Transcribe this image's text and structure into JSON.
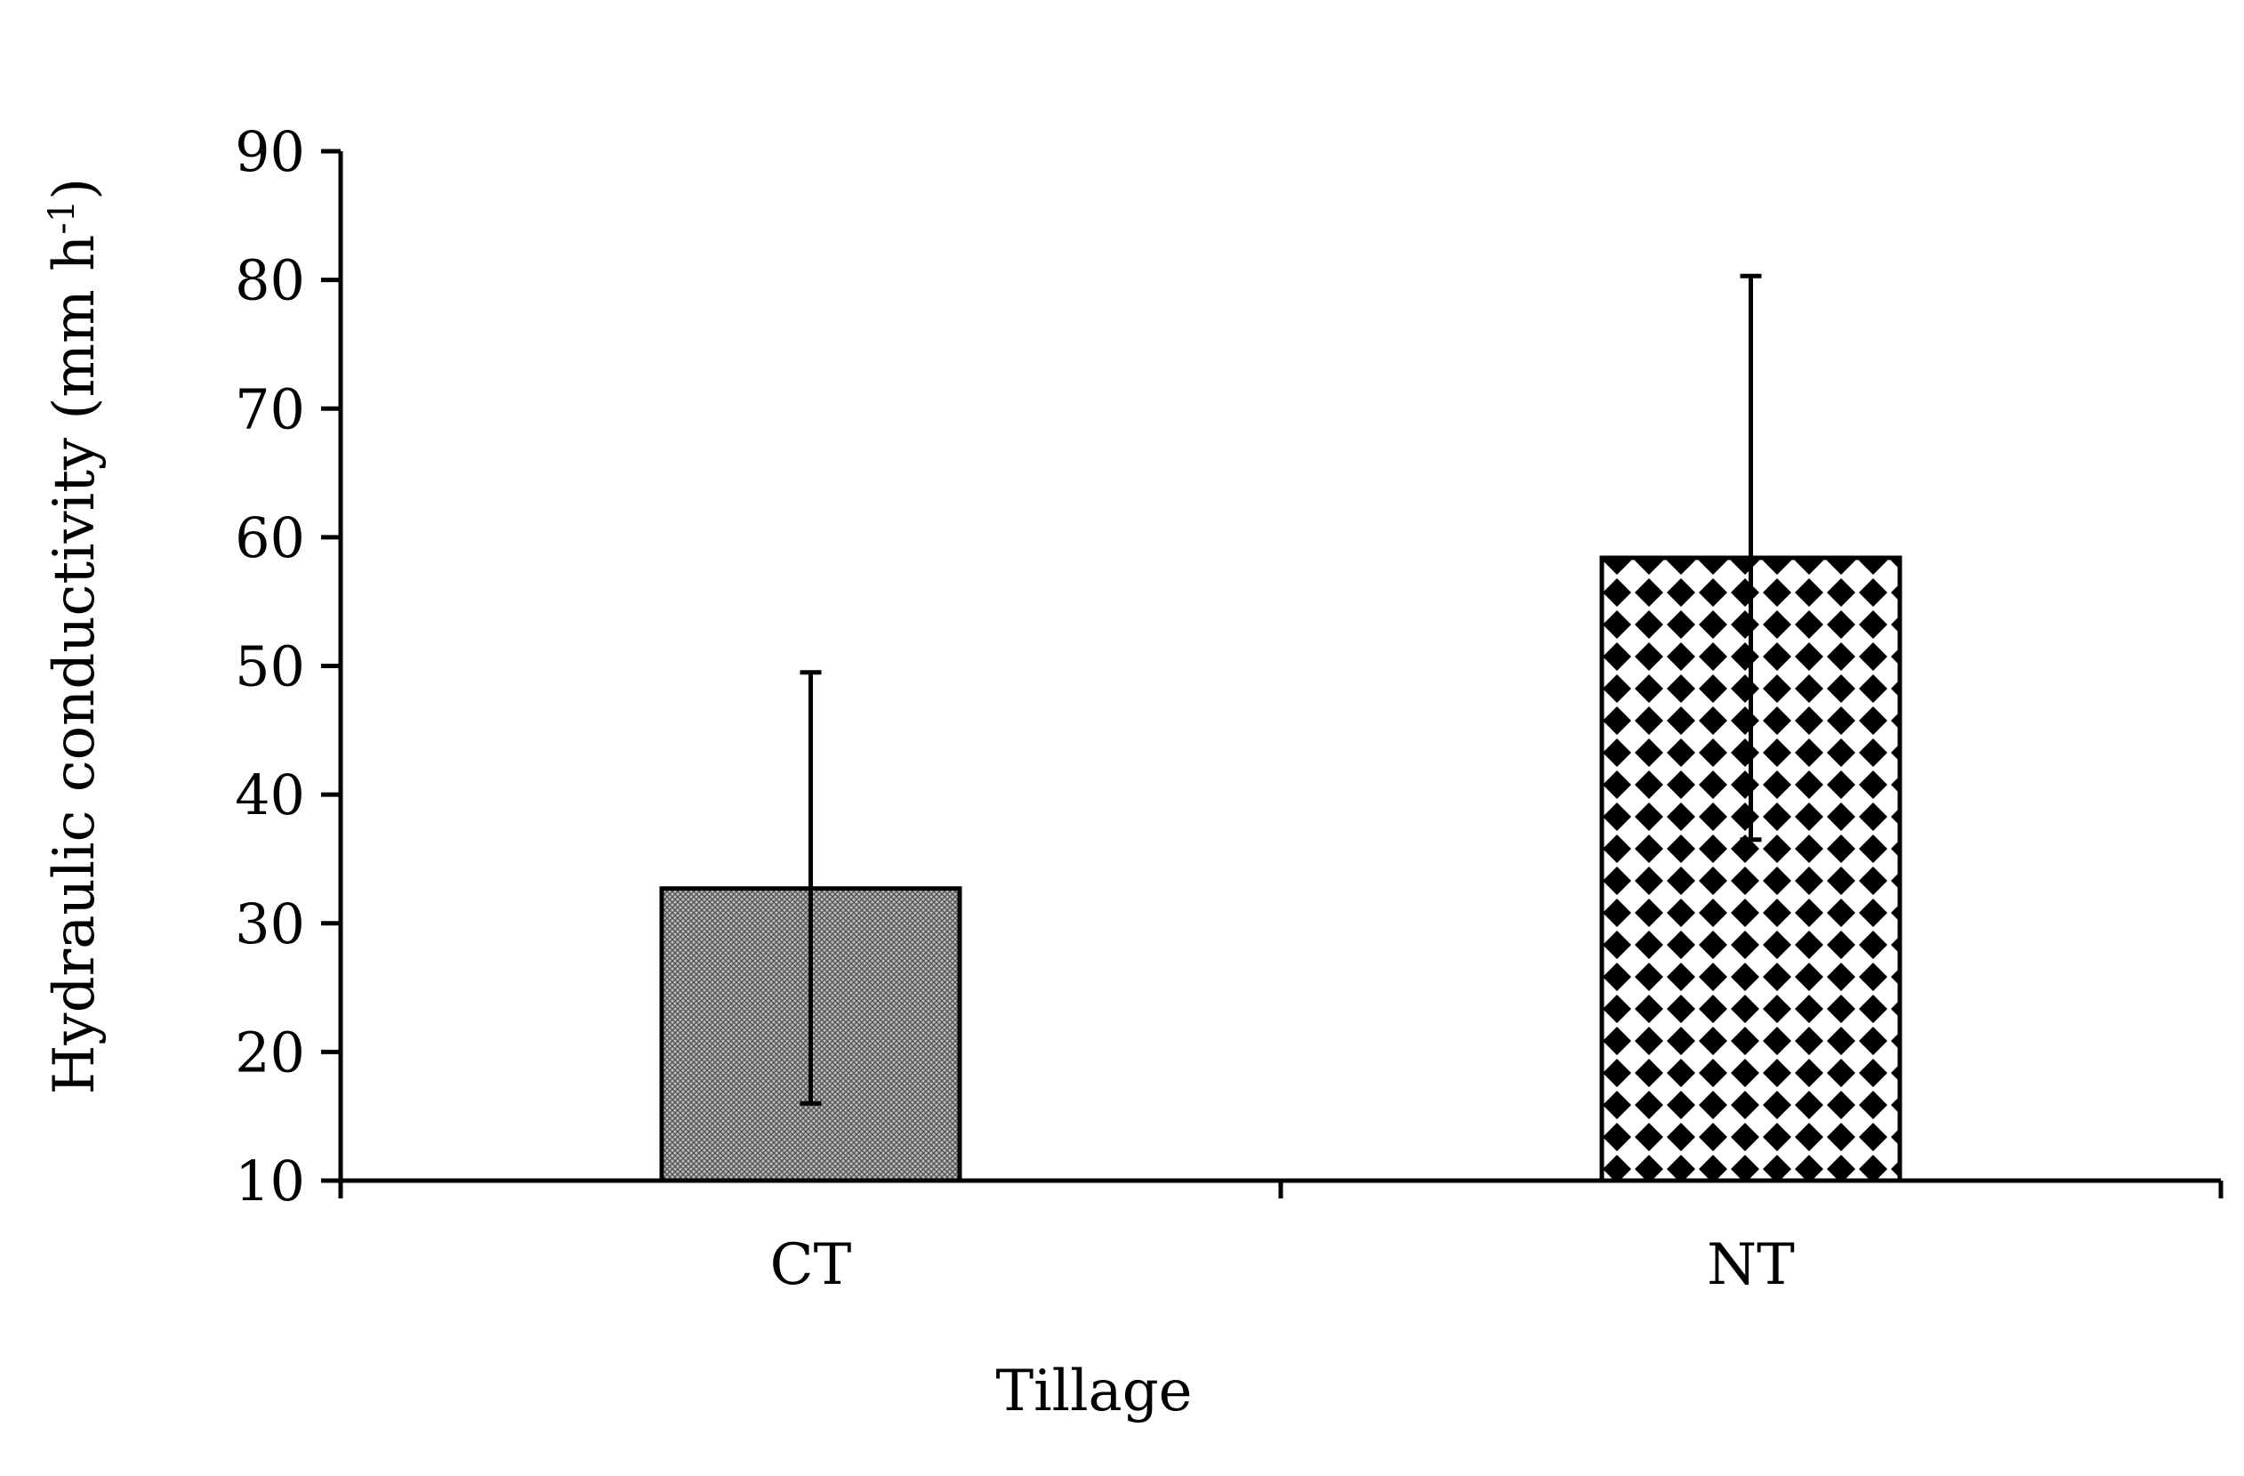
{
  "chart_data": {
    "type": "bar",
    "title": "",
    "xlabel": "Tillage",
    "ylabel": "Hydraulic conductivity (mm h",
    "ylabel_sup": "-1",
    "ylabel_close": ")",
    "categories": [
      "CT",
      "NT"
    ],
    "values": [
      32.7,
      58.4
    ],
    "error_bars": [
      {
        "low": 16,
        "high": 49.5
      },
      {
        "low": 36.5,
        "high": 80.3
      }
    ],
    "ylim": [
      10,
      90
    ],
    "yticks": [
      10,
      20,
      30,
      40,
      50,
      60,
      70,
      80,
      90
    ],
    "fills": [
      "crosshatch-gray",
      "diamond-checker"
    ],
    "bar_color": "#000000",
    "background": "#ffffff",
    "grid": false,
    "legend": "none"
  }
}
